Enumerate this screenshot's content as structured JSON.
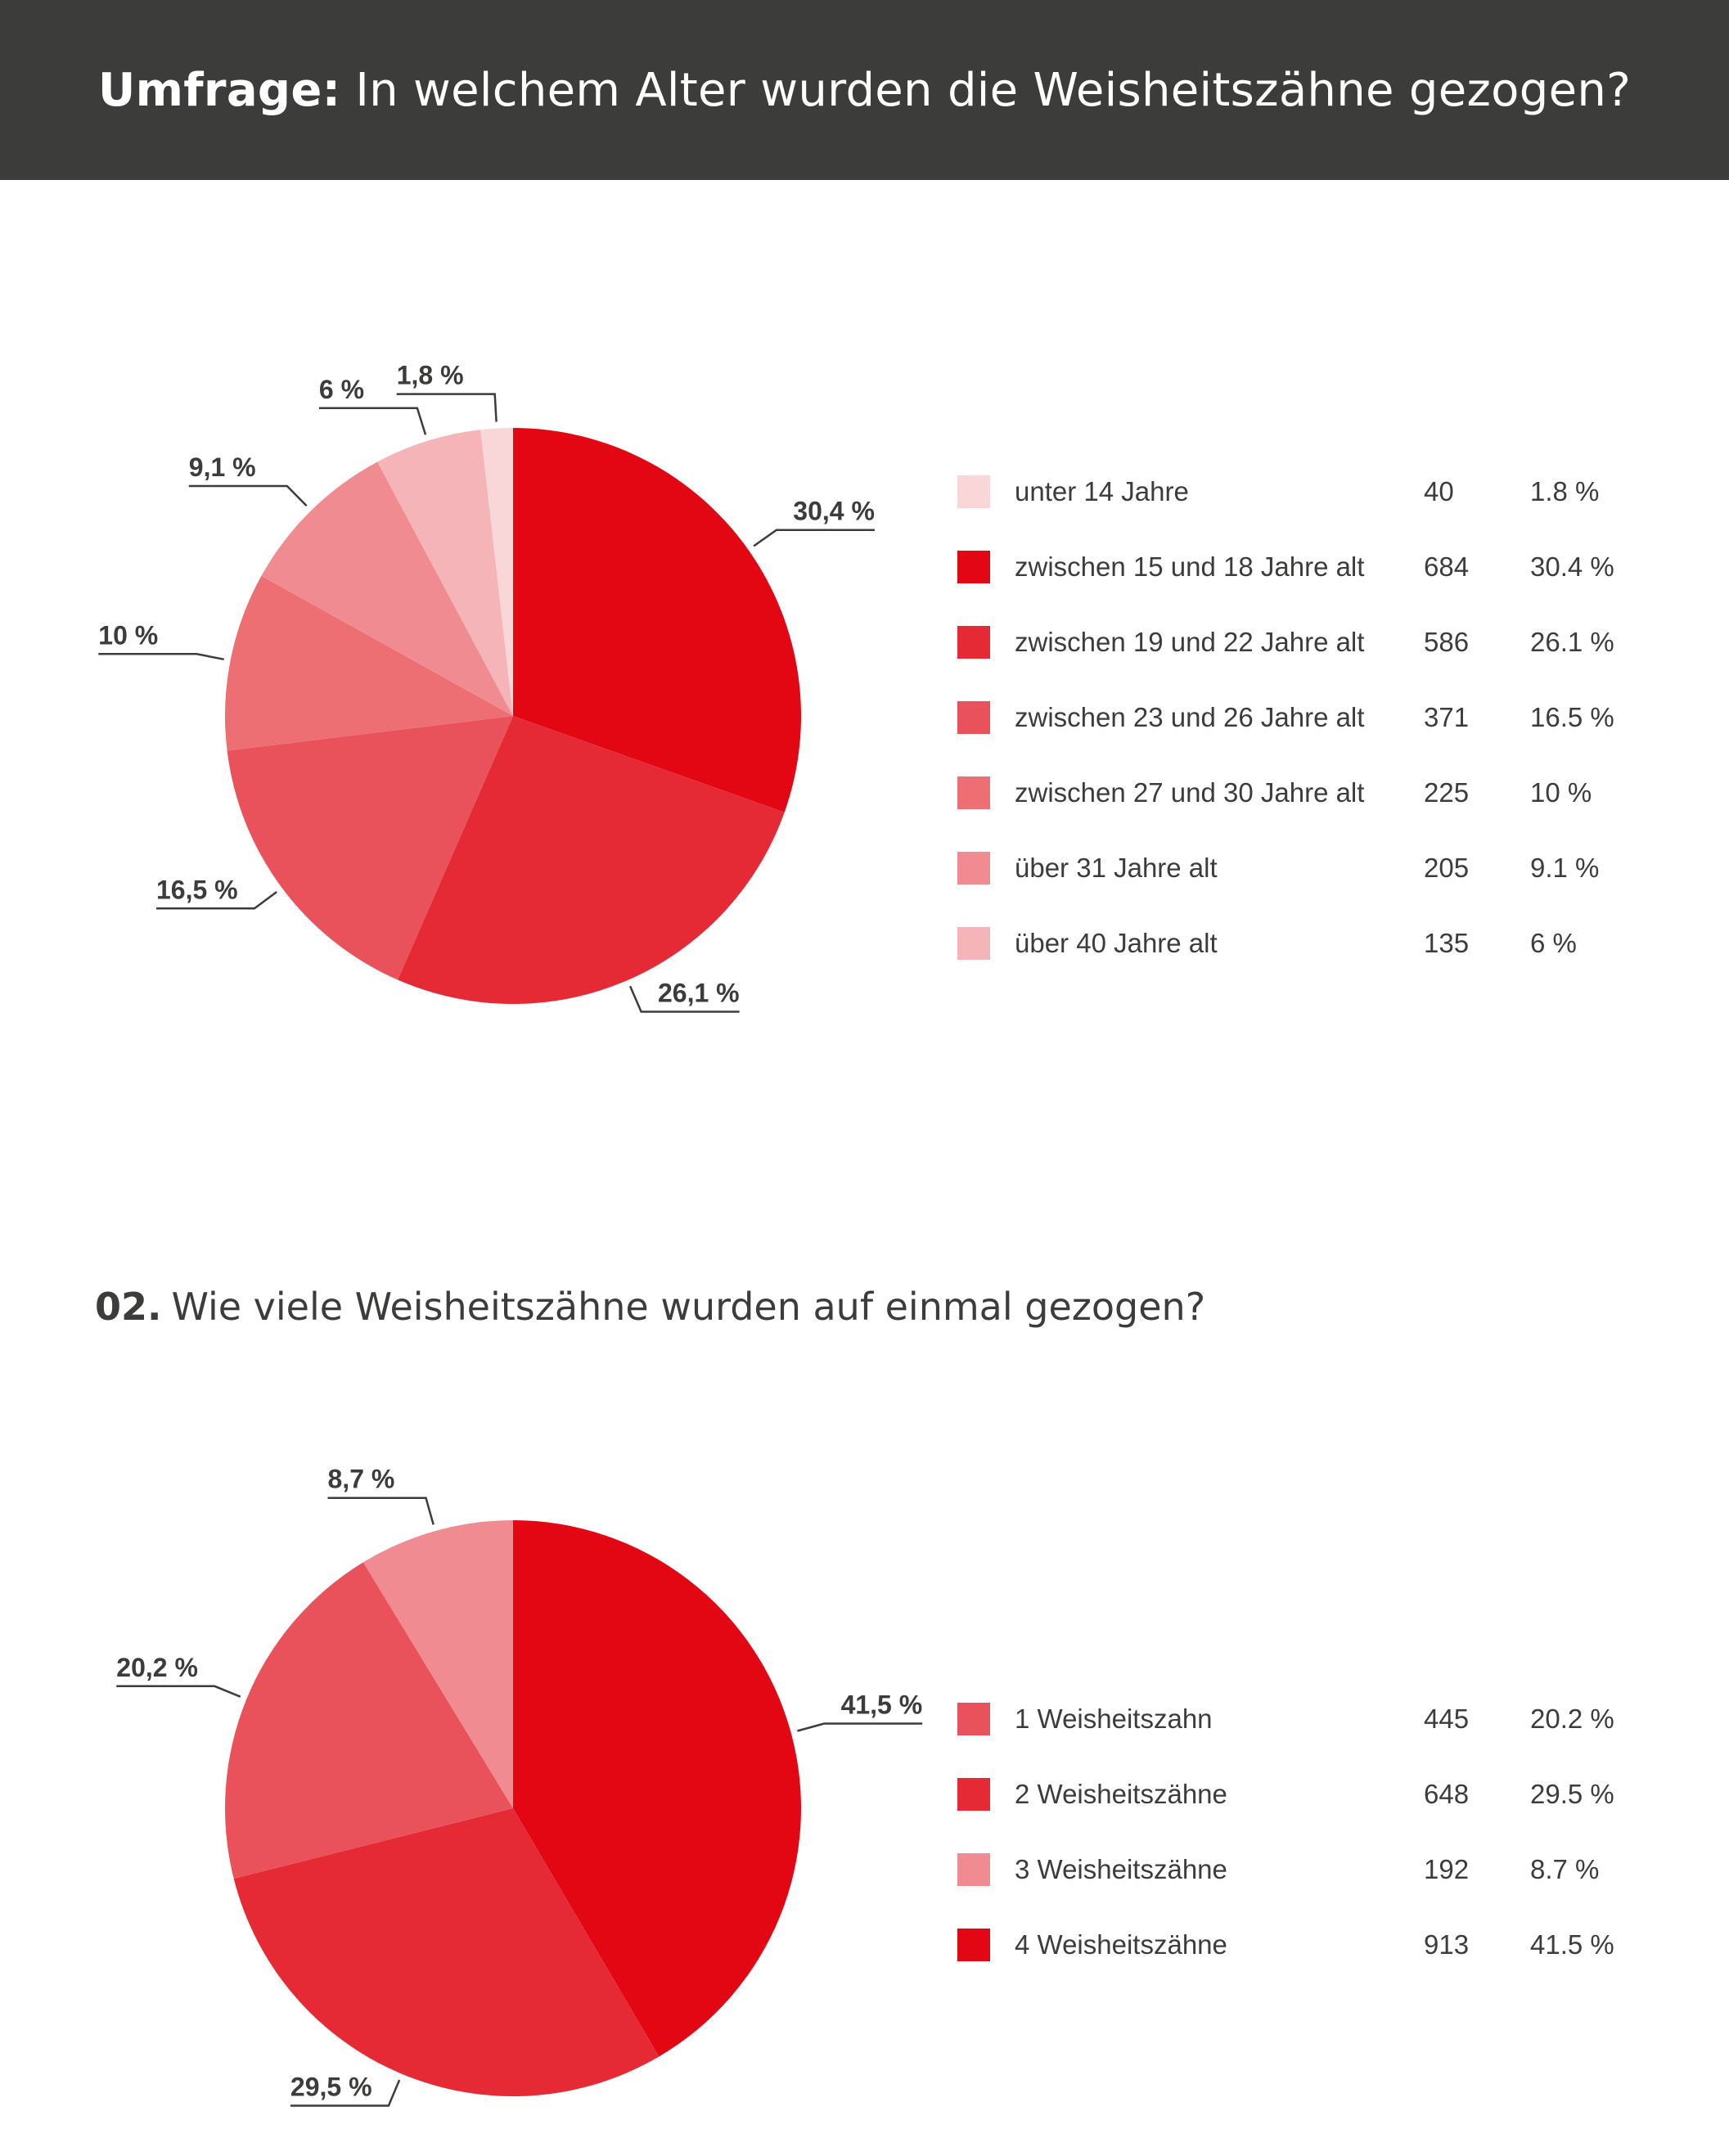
{
  "header": {
    "prefix": "Umfrage:",
    "title": "In welchem Alter wurden die Weisheitszähne gezogen?"
  },
  "section2": {
    "number": "02.",
    "title": "Wie viele Weisheitszähne wurden auf einmal gezogen?"
  },
  "chart_data": [
    {
      "type": "pie",
      "title": "In welchem Alter wurden die Weisheitszähne gezogen?",
      "slices": [
        {
          "label": "zwischen 15 und 18 Jahre alt",
          "count": "684",
          "value": 30.4,
          "legend_pct": "30.4 %",
          "callout": "30,4 %",
          "color": "#e30613"
        },
        {
          "label": "zwischen 19 und 22 Jahre alt",
          "count": "586",
          "value": 26.1,
          "legend_pct": "26.1 %",
          "callout": "26,1 %",
          "color": "#e52a36"
        },
        {
          "label": "zwischen 23 und 26 Jahre alt",
          "count": "371",
          "value": 16.5,
          "legend_pct": "16.5 %",
          "callout": "16,5 %",
          "color": "#ea525b"
        },
        {
          "label": "zwischen 27 und 30 Jahre alt",
          "count": "225",
          "value": 10,
          "legend_pct": "10 %",
          "callout": "10 %",
          "color": "#ed6e73"
        },
        {
          "label": "über 31 Jahre alt",
          "count": "205",
          "value": 9.1,
          "legend_pct": "9.1 %",
          "callout": "9,1 %",
          "color": "#f08c91"
        },
        {
          "label": "über 40 Jahre alt",
          "count": "135",
          "value": 6,
          "legend_pct": "6 %",
          "callout": "6 %",
          "color": "#f5b4b7"
        },
        {
          "label": "unter 14 Jahre",
          "count": "40",
          "value": 1.8,
          "legend_pct": "1.8 %",
          "callout": "1,8 %",
          "color": "#f9d6d8"
        }
      ],
      "legend_order": [
        "unter 14 Jahre",
        "zwischen 15 und 18 Jahre alt",
        "zwischen 19 und 22 Jahre alt",
        "zwischen 23 und 26 Jahre alt",
        "zwischen 27 und 30 Jahre alt",
        "über 31 Jahre alt",
        "über 40 Jahre alt"
      ]
    },
    {
      "type": "pie",
      "title": "Wie viele Weisheitszähne wurden auf einmal gezogen?",
      "slices": [
        {
          "label": "4 Weisheitszähne",
          "count": "913",
          "value": 41.5,
          "legend_pct": "41.5 %",
          "callout": "41,5 %",
          "color": "#e30613"
        },
        {
          "label": "2 Weisheitszähne",
          "count": "648",
          "value": 29.5,
          "legend_pct": "29.5 %",
          "callout": "29,5 %",
          "color": "#e52a36"
        },
        {
          "label": "1 Weisheitszahn",
          "count": "445",
          "value": 20.2,
          "legend_pct": "20.2 %",
          "callout": "20,2 %",
          "color": "#ea525b"
        },
        {
          "label": "3 Weisheitszähne",
          "count": "192",
          "value": 8.7,
          "legend_pct": "8.7 %",
          "callout": "8,7 %",
          "color": "#f08c91"
        }
      ],
      "legend_order": [
        "1 Weisheitszahn",
        "2 Weisheitszähne",
        "3 Weisheitszähne",
        "4 Weisheitszähne"
      ]
    }
  ]
}
